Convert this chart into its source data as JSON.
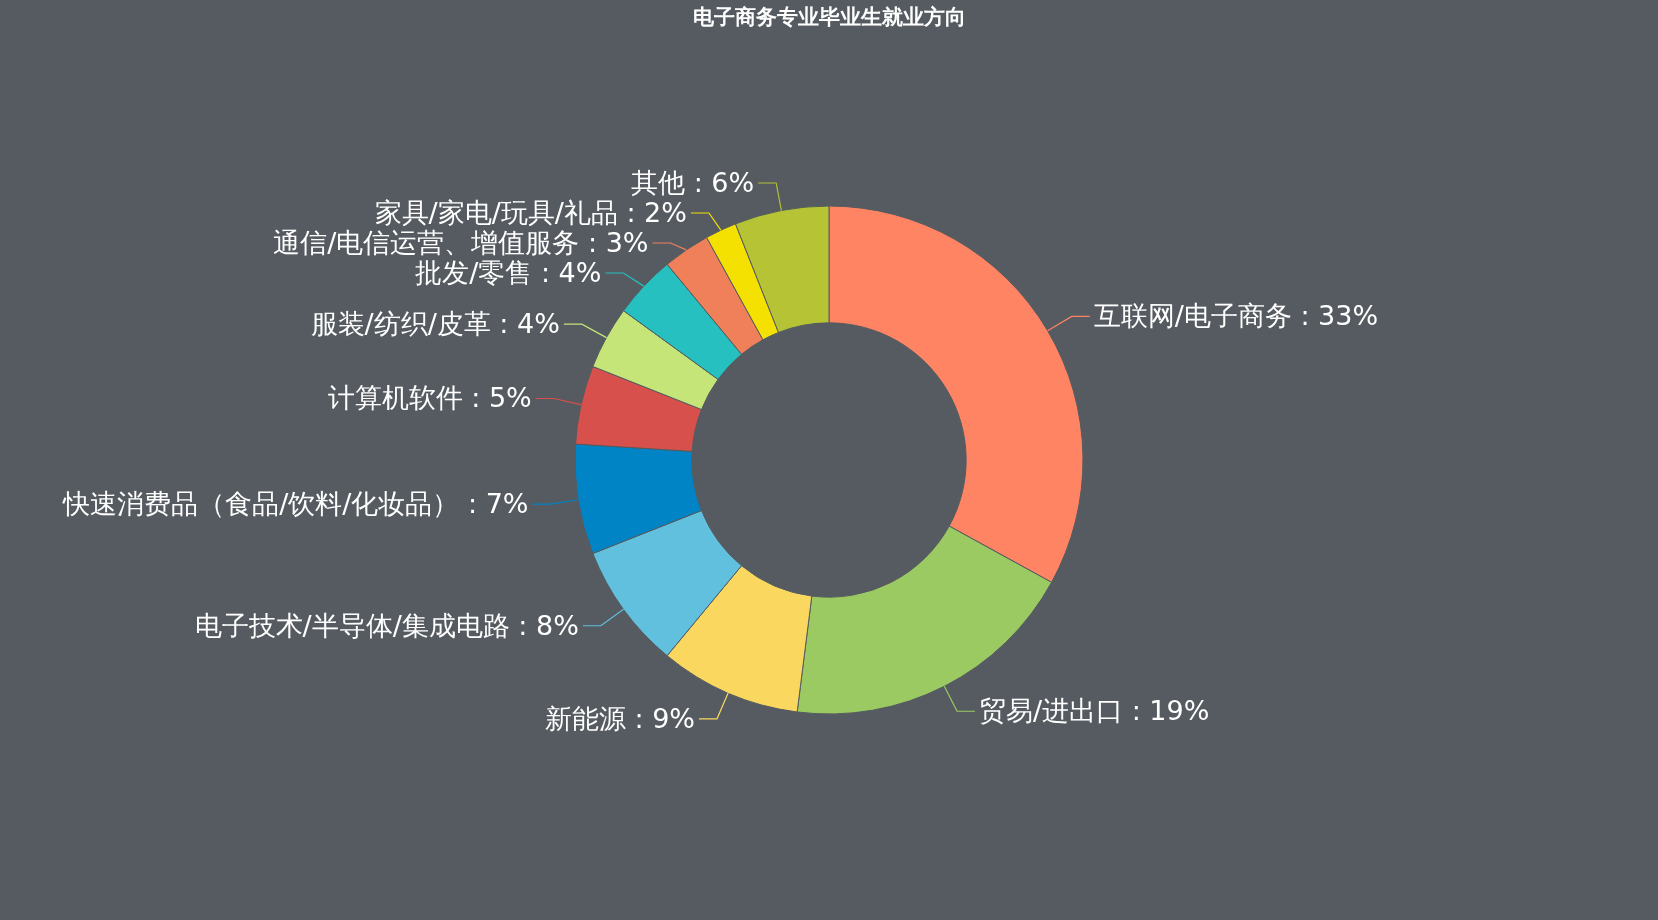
{
  "chart_data": {
    "type": "donut",
    "title": "电子商务专业毕业生就业方向",
    "categories": [
      "互联网/电子商务",
      "贸易/进出口",
      "新能源",
      "电子技术/半导体/集成电路",
      "快速消费品（食品/饮料/化妆品）",
      "计算机软件",
      "服装/纺织/皮革",
      "批发/零售",
      "通信/电信运营、增值服务",
      "家具/家电/玩具/礼品",
      "其他"
    ],
    "values": [
      33,
      19,
      9,
      8,
      7,
      5,
      4,
      4,
      3,
      2,
      6
    ],
    "value_labels": [
      "33%",
      "19%",
      "9%",
      "8%",
      "7%",
      "5%",
      "4%",
      "4%",
      "3%",
      "2%",
      "6%"
    ],
    "colors": [
      "#ff8463",
      "#9bca63",
      "#fad860",
      "#60c0dd",
      "#0084c6",
      "#d7504b",
      "#c6e579",
      "#26c0c0",
      "#f0805a",
      "#f4e001",
      "#b5c334"
    ]
  }
}
